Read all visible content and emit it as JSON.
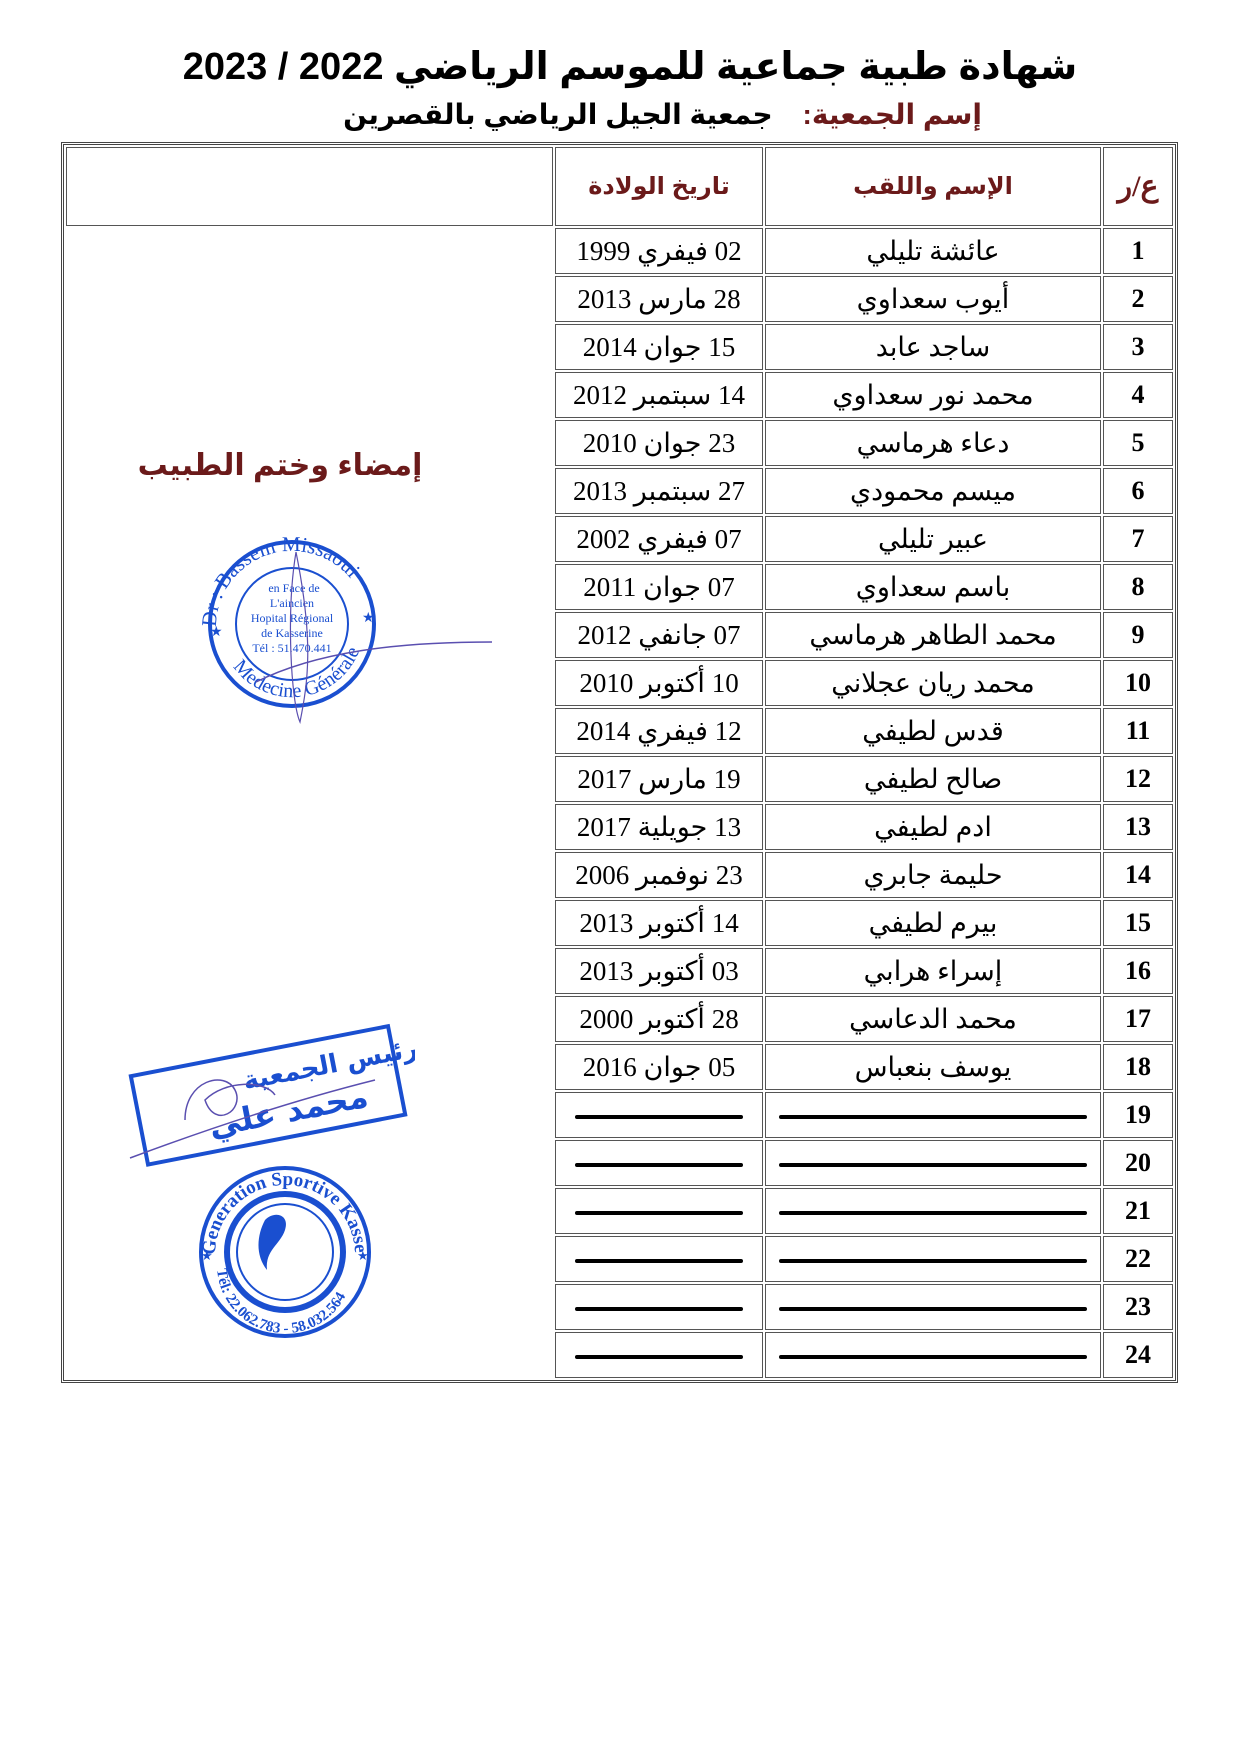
{
  "document": {
    "title": "شهادة طبية جماعية للموسم الرياضي 2022 / 2023",
    "association_label": "إسم الجمعية:",
    "association_name": "جمعية الجيل الرياضي بالقصرين"
  },
  "table": {
    "headers": {
      "number": "ع/ر",
      "name": "الإسم واللقب",
      "birth_date": "تاريخ الولادة",
      "signature": ""
    },
    "signature_label": "إمضاء وختم الطبيب",
    "rows": [
      {
        "n": "1",
        "name": "عائشة تليلي",
        "date": "02 فيفري 1999"
      },
      {
        "n": "2",
        "name": "أيوب سعداوي",
        "date": "28 مارس 2013"
      },
      {
        "n": "3",
        "name": "ساجد عابد",
        "date": "15 جوان 2014"
      },
      {
        "n": "4",
        "name": "محمد نور سعداوي",
        "date": "14 سبتمبر 2012"
      },
      {
        "n": "5",
        "name": "دعاء هرماسي",
        "date": "23 جوان 2010"
      },
      {
        "n": "6",
        "name": "ميسم محمودي",
        "date": "27 سبتمبر 2013"
      },
      {
        "n": "7",
        "name": "عبير تليلي",
        "date": "07 فيفري 2002"
      },
      {
        "n": "8",
        "name": "باسم سعداوي",
        "date": "07 جوان 2011"
      },
      {
        "n": "9",
        "name": "محمد الطاهر هرماسي",
        "date": "07 جانفي 2012"
      },
      {
        "n": "10",
        "name": "محمد ريان عجلاني",
        "date": "10 أكتوبر 2010"
      },
      {
        "n": "11",
        "name": "قدس لطيفي",
        "date": "12 فيفري 2014"
      },
      {
        "n": "12",
        "name": "صالح لطيفي",
        "date": "19 مارس 2017"
      },
      {
        "n": "13",
        "name": "ادم لطيفي",
        "date": "13 جويلية 2017"
      },
      {
        "n": "14",
        "name": "حليمة جابري",
        "date": "23 نوفمبر 2006"
      },
      {
        "n": "15",
        "name": "بيرم لطيفي",
        "date": "14 أكتوبر 2013"
      },
      {
        "n": "16",
        "name": "إسراء هرابي",
        "date": "03 أكتوبر 2013"
      },
      {
        "n": "17",
        "name": "محمد الدعاسي",
        "date": "28 أكتوبر 2000"
      },
      {
        "n": "18",
        "name": "يوسف بنعباس",
        "date": "05 جوان 2016"
      },
      {
        "n": "19",
        "name": "",
        "date": ""
      },
      {
        "n": "20",
        "name": "",
        "date": ""
      },
      {
        "n": "21",
        "name": "",
        "date": ""
      },
      {
        "n": "22",
        "name": "",
        "date": ""
      },
      {
        "n": "23",
        "name": "",
        "date": ""
      },
      {
        "n": "24",
        "name": "",
        "date": ""
      }
    ]
  },
  "stamps": {
    "doctor": {
      "top": "Dr : Bassem Missaoui",
      "bottom": "Medecine Générale",
      "lines": [
        "en Face de",
        "L'aincien",
        "Hopital Régional",
        "de Kasserine",
        "Tél : 51.470.441"
      ]
    },
    "president": {
      "line1": "رئيس الجمعية",
      "line2": "محمد علي"
    },
    "club": {
      "top": "Generation Sportive Kasserine",
      "bottom": "Tél: 22.062.783 - 58.032.564"
    },
    "ink_color": "#1a4fd0",
    "signature_color": "#5a4fb0"
  },
  "colors": {
    "header_text": "#6b1a1a",
    "body_text": "#000000"
  }
}
